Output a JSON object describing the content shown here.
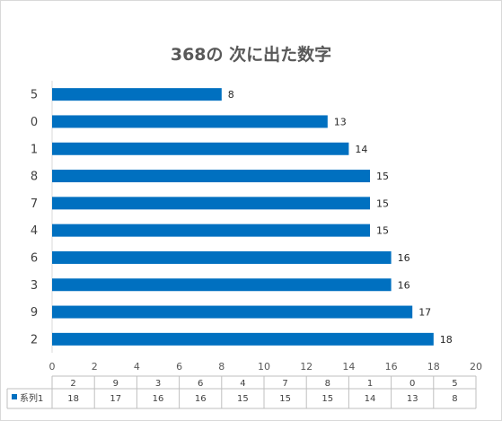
{
  "chart_data": {
    "type": "bar",
    "orientation": "horizontal",
    "title": "368の 次に出た数字",
    "categories": [
      "2",
      "9",
      "3",
      "6",
      "4",
      "7",
      "8",
      "1",
      "0",
      "5"
    ],
    "series": [
      {
        "name": "系列1",
        "values": [
          18,
          17,
          16,
          16,
          15,
          15,
          15,
          14,
          13,
          8
        ]
      }
    ],
    "xlim": [
      0,
      20
    ],
    "x_ticks": [
      "0",
      "2",
      "4",
      "6",
      "8",
      "10",
      "12",
      "14",
      "16",
      "18",
      "20"
    ],
    "grid": false,
    "data_labels": true,
    "data_table": true,
    "bar_color": "#0070C0"
  }
}
